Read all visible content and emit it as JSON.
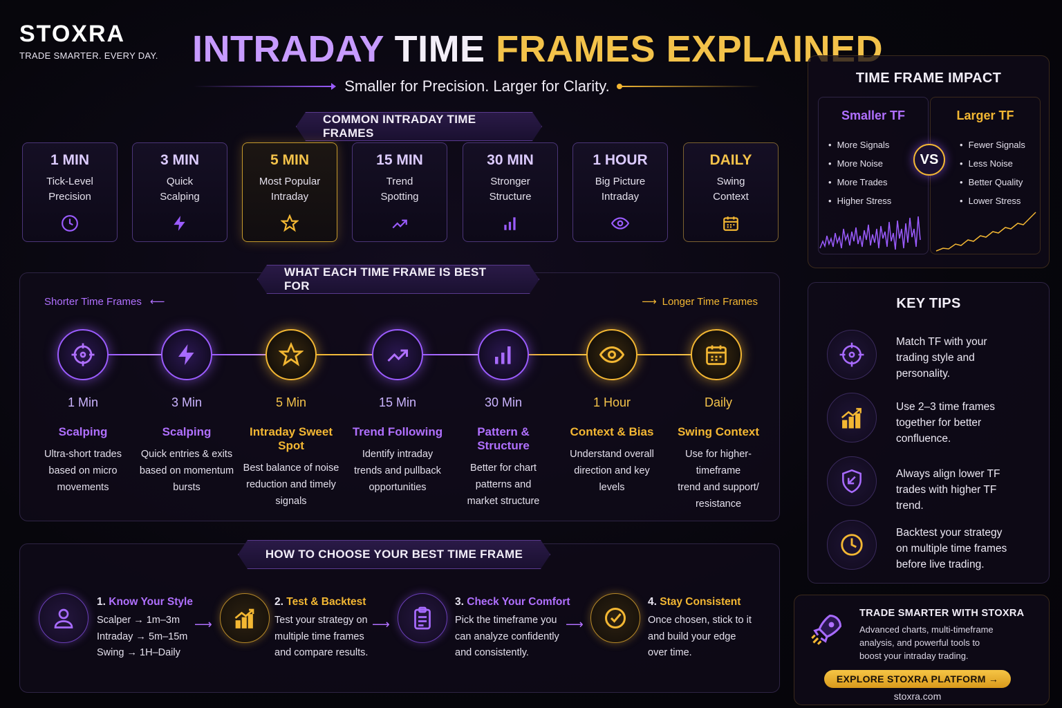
{
  "brand": {
    "logo_text": "STOXRA",
    "tagline": "TRADE SMARTER. EVERY DAY."
  },
  "header": {
    "title_part1": "INTRADAY",
    "title_part2": "TIME",
    "title_part3": "FRAMES EXPLAINED",
    "subtitle": "Smaller for Precision. Larger for Clarity."
  },
  "colors": {
    "purple": "#9b5cff",
    "gold": "#f3b733",
    "background": "#07060c"
  },
  "common": {
    "heading": "COMMON INTRADAY TIME FRAMES",
    "cards": [
      {
        "label": "1 MIN",
        "line1": "Tick-Level",
        "line2": "Precision",
        "icon": "clock-icon"
      },
      {
        "label": "3 MIN",
        "line1": "Quick",
        "line2": "Scalping",
        "icon": "lightning-icon"
      },
      {
        "label": "5 MIN",
        "line1": "Most Popular",
        "line2": "Intraday",
        "icon": "star-icon"
      },
      {
        "label": "15 MIN",
        "line1": "Trend",
        "line2": "Spotting",
        "icon": "trend-up-icon"
      },
      {
        "label": "30 MIN",
        "line1": "Stronger",
        "line2": "Structure",
        "icon": "bar-chart-icon"
      },
      {
        "label": "1 HOUR",
        "line1": "Big Picture",
        "line2": "Intraday",
        "icon": "eye-icon"
      },
      {
        "label": "DAILY",
        "line1": "Swing",
        "line2": "Context",
        "icon": "calendar-icon"
      }
    ]
  },
  "best_for": {
    "heading": "WHAT EACH TIME FRAME IS BEST FOR",
    "shorter_label": "Shorter Time Frames",
    "longer_label": "Longer Time Frames",
    "items": [
      {
        "tf": "1 Min",
        "name": "Scalping",
        "d1": "Ultra-short trades",
        "d2": "based on micro",
        "d3": "movements",
        "icon": "target-icon"
      },
      {
        "tf": "3 Min",
        "name": "Scalping",
        "d1": "Quick entries & exits",
        "d2": "based on momentum",
        "d3": "bursts",
        "icon": "lightning-icon"
      },
      {
        "tf": "5 Min",
        "name": "Intraday Sweet Spot",
        "d1": "Best balance of noise",
        "d2": "reduction and timely",
        "d3": "signals",
        "icon": "star-icon"
      },
      {
        "tf": "15 Min",
        "name": "Trend Following",
        "d1": "Identify intraday",
        "d2": "trends and pullback",
        "d3": "opportunities",
        "icon": "trend-up-icon"
      },
      {
        "tf": "30 Min",
        "name": "Pattern & Structure",
        "d1": "Better for chart",
        "d2": "patterns and",
        "d3": "market structure",
        "icon": "bar-chart-icon"
      },
      {
        "tf": "1 Hour",
        "name": "Context & Bias",
        "d1": "Understand overall",
        "d2": "direction and key",
        "d3": "levels",
        "icon": "eye-icon"
      },
      {
        "tf": "Daily",
        "name": "Swing Context",
        "d1": "Use for higher-timeframe",
        "d2": "trend and support/",
        "d3": "resistance",
        "icon": "calendar-icon"
      }
    ]
  },
  "choose": {
    "heading": "HOW TO CHOOSE YOUR BEST TIME FRAME",
    "steps": [
      {
        "num": "1.",
        "title": "Know Your Style",
        "l1": "Scalper → 1m–3m",
        "l2": "Intraday → 5m–15m",
        "l3": "Swing → 1H–Daily",
        "icon": "user-icon"
      },
      {
        "num": "2.",
        "title": "Test & Backtest",
        "l1": "Test your strategy on",
        "l2": "multiple time frames",
        "l3": "and compare results.",
        "icon": "growth-chart-icon"
      },
      {
        "num": "3.",
        "title": "Check Your Comfort",
        "l1": "Pick the timeframe you",
        "l2": "can analyze confidently",
        "l3": "and consistently.",
        "icon": "clipboard-icon"
      },
      {
        "num": "4.",
        "title": "Stay Consistent",
        "l1": "Once chosen, stick to it",
        "l2": "and build your edge",
        "l3": "over time.",
        "icon": "check-circle-icon"
      }
    ]
  },
  "impact": {
    "heading": "TIME FRAME IMPACT",
    "smaller_title": "Smaller TF",
    "smaller_items": [
      "More Signals",
      "More Noise",
      "More Trades",
      "Higher Stress"
    ],
    "vs": "VS",
    "larger_title": "Larger TF",
    "larger_items": [
      "Fewer Signals",
      "Less Noise",
      "Better Quality",
      "Lower Stress"
    ]
  },
  "tips": {
    "heading": "KEY TIPS",
    "items": [
      {
        "l1": "Match TF with your",
        "l2": "trading style and",
        "l3": "personality.",
        "icon": "target-icon"
      },
      {
        "l1": "Use 2–3 time frames",
        "l2": "together for better",
        "l3": "confluence.",
        "icon": "growth-chart-icon"
      },
      {
        "l1": "Always align lower TF",
        "l2": "trades with higher TF",
        "l3": "trend.",
        "icon": "shield-icon"
      },
      {
        "l1": "Backtest your strategy",
        "l2": "on multiple time frames",
        "l3": "before live trading.",
        "icon": "clock-icon"
      }
    ]
  },
  "promo": {
    "title": "TRADE SMARTER WITH STOXRA",
    "l1": "Advanced charts, multi-timeframe",
    "l2": "analysis, and powerful tools to",
    "l3": "boost your intraday trading.",
    "cta": "EXPLORE STOXRA PLATFORM →",
    "site": "stoxra.com",
    "icon": "rocket-icon"
  }
}
